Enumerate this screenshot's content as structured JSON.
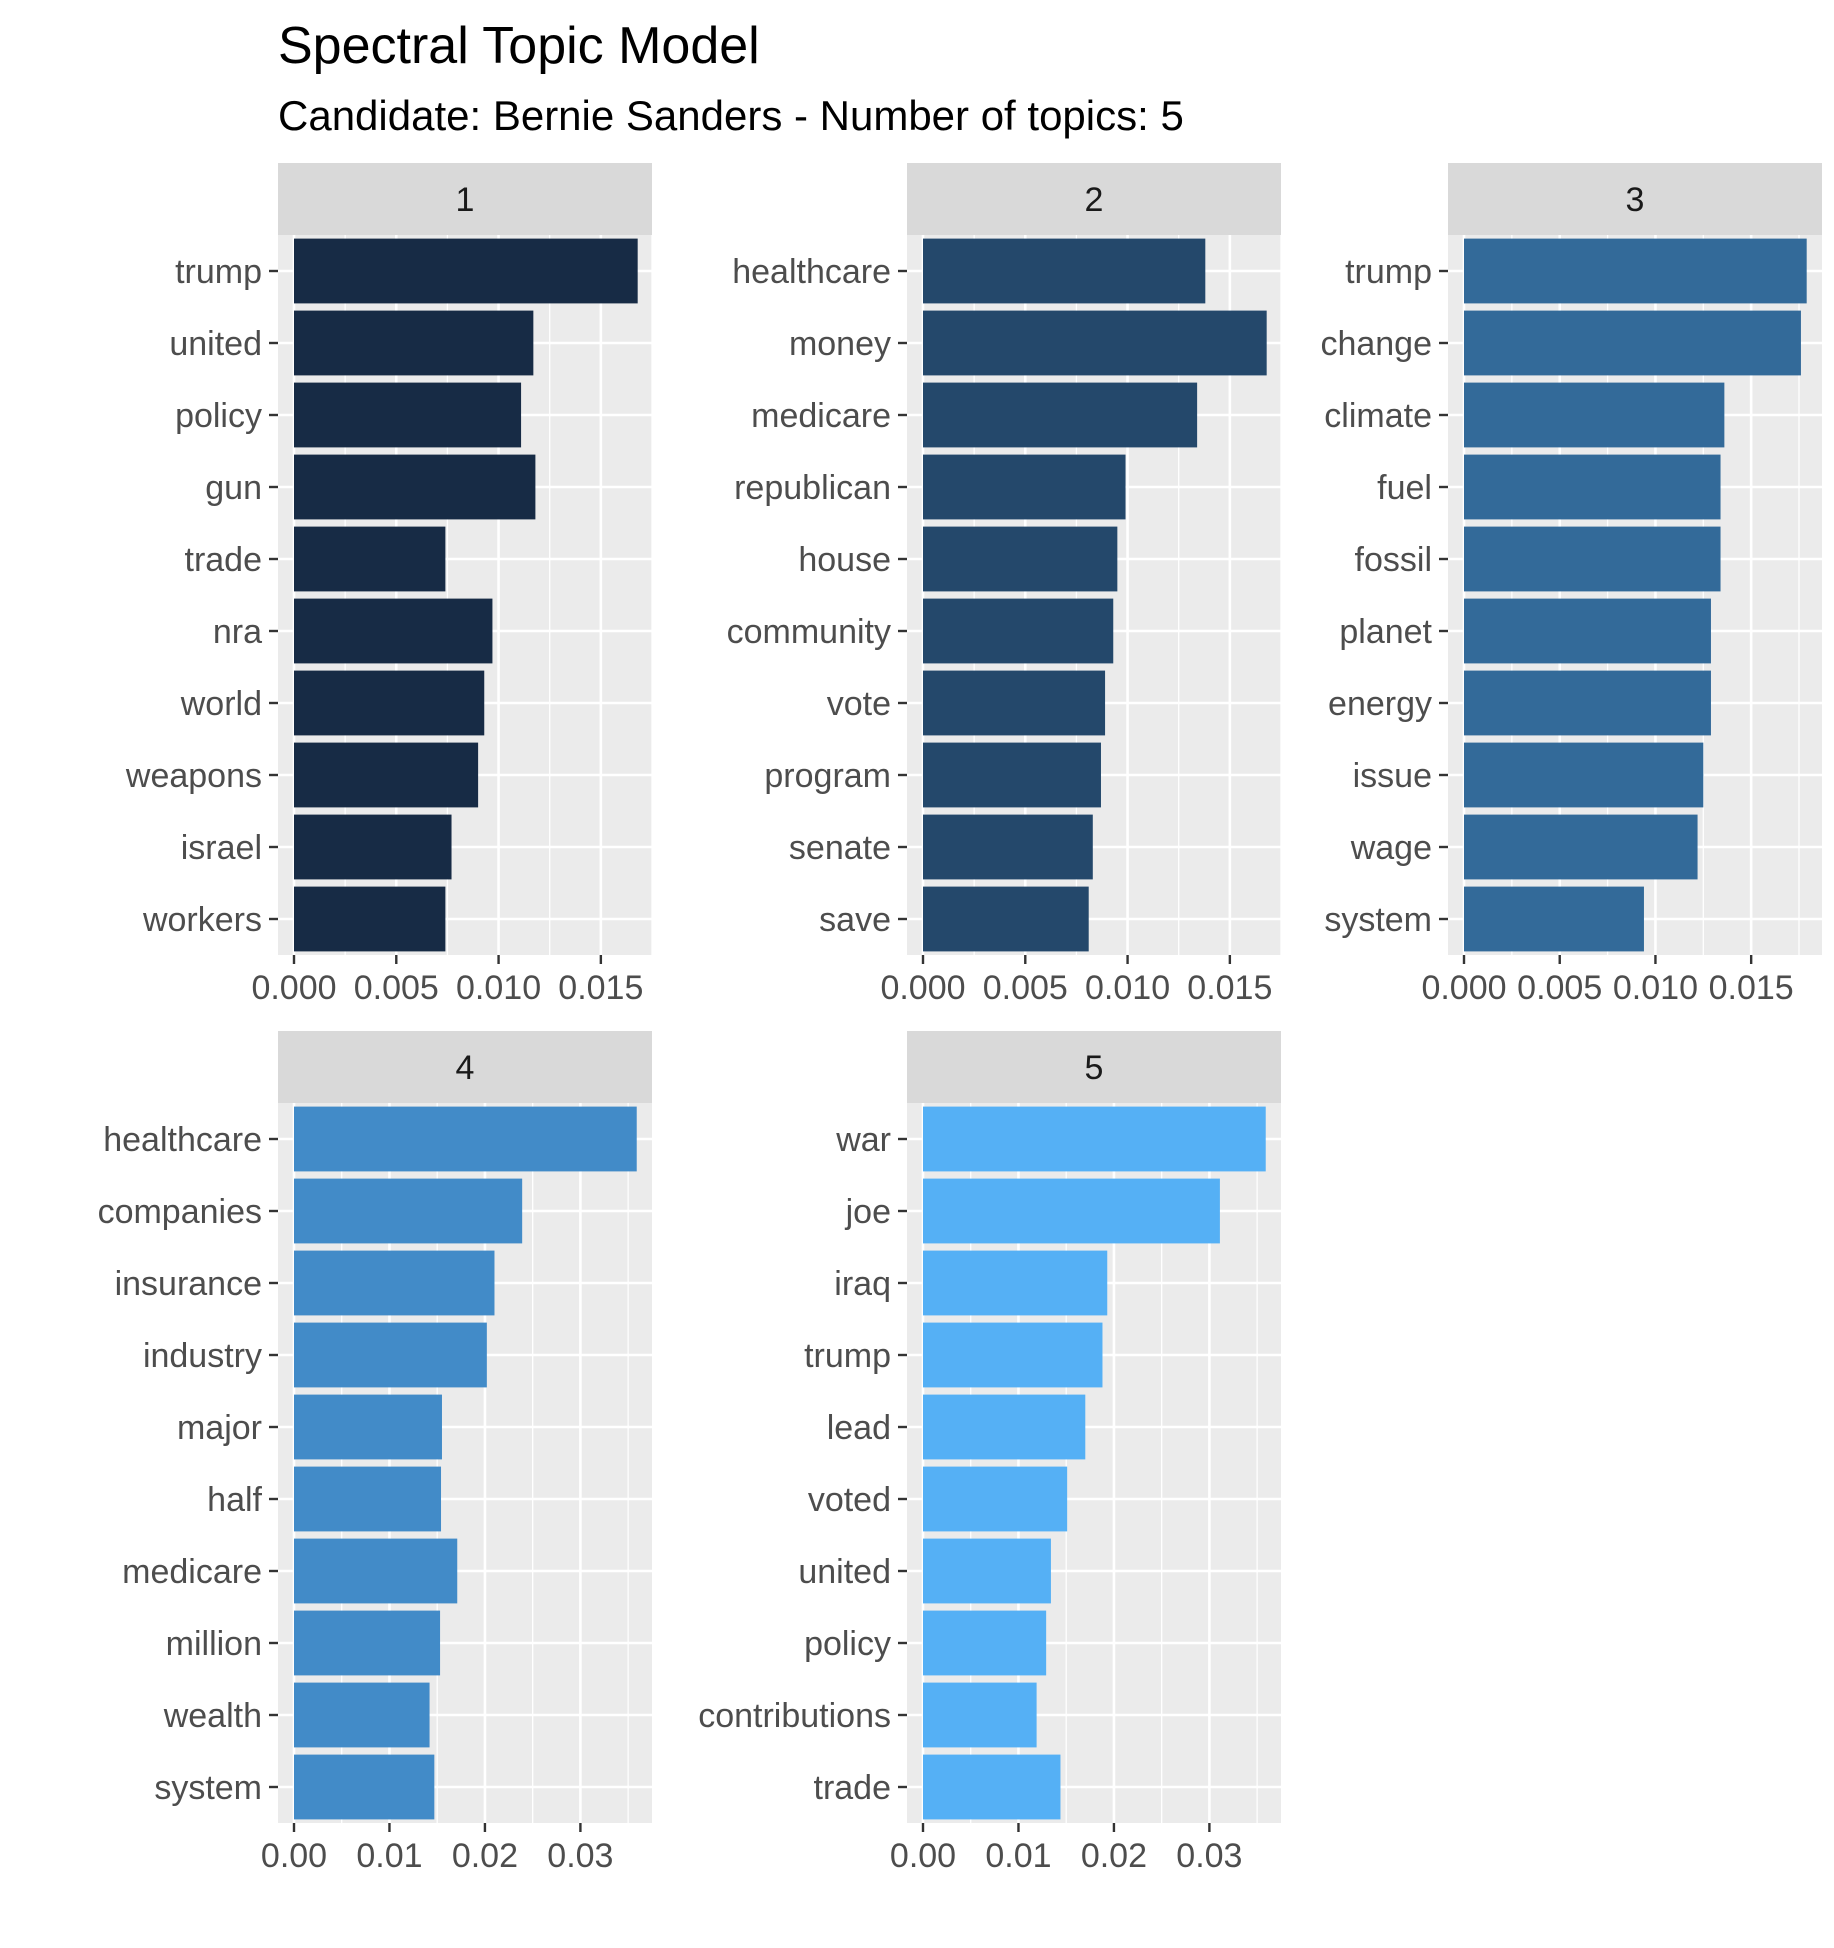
{
  "chart_data": {
    "type": "bar",
    "orientation": "horizontal",
    "title": "Spectral Topic Model",
    "subtitle": "Candidate: Bernie Sanders - Number of topics: 5",
    "xlabel": "",
    "ylabel": "",
    "grid": true,
    "legend": "none",
    "facets": [
      {
        "label": "1",
        "color": "#172b45",
        "xlim": [
          0,
          0.0175
        ],
        "ticks": [
          0,
          0.005,
          0.01,
          0.015
        ],
        "tick_labels": [
          "0.000",
          "0.005",
          "0.010",
          "0.015"
        ],
        "categories": [
          "trump",
          "united",
          "policy",
          "gun",
          "trade",
          "nra",
          "world",
          "weapons",
          "israel",
          "workers"
        ],
        "values": [
          0.0168,
          0.0117,
          0.0111,
          0.0118,
          0.0074,
          0.0097,
          0.0093,
          0.009,
          0.0077,
          0.0074
        ]
      },
      {
        "label": "2",
        "color": "#24486b",
        "xlim": [
          0,
          0.0175
        ],
        "ticks": [
          0,
          0.005,
          0.01,
          0.015
        ],
        "tick_labels": [
          "0.000",
          "0.005",
          "0.010",
          "0.015"
        ],
        "categories": [
          "healthcare",
          "money",
          "medicare",
          "republican",
          "house",
          "community",
          "vote",
          "program",
          "senate",
          "save"
        ],
        "values": [
          0.0138,
          0.0168,
          0.0134,
          0.0099,
          0.0095,
          0.0093,
          0.0089,
          0.0087,
          0.0083,
          0.0081
        ]
      },
      {
        "label": "3",
        "color": "#336a99",
        "xlim": [
          0,
          0.0187
        ],
        "ticks": [
          0,
          0.005,
          0.01,
          0.015
        ],
        "tick_labels": [
          "0.000",
          "0.005",
          "0.010",
          "0.015"
        ],
        "categories": [
          "trump",
          "change",
          "climate",
          "fuel",
          "fossil",
          "planet",
          "energy",
          "issue",
          "wage",
          "system"
        ],
        "values": [
          0.0179,
          0.0176,
          0.0136,
          0.0134,
          0.0134,
          0.0129,
          0.0129,
          0.0125,
          0.0122,
          0.0094
        ]
      },
      {
        "label": "4",
        "color": "#428bc8",
        "xlim": [
          0,
          0.0375
        ],
        "ticks": [
          0,
          0.01,
          0.02,
          0.03
        ],
        "tick_labels": [
          "0.00",
          "0.01",
          "0.02",
          "0.03"
        ],
        "categories": [
          "healthcare",
          "companies",
          "insurance",
          "industry",
          "major",
          "half",
          "medicare",
          "million",
          "wealth",
          "system"
        ],
        "values": [
          0.0359,
          0.0239,
          0.021,
          0.0202,
          0.0155,
          0.0154,
          0.0171,
          0.0153,
          0.0142,
          0.0147
        ]
      },
      {
        "label": "5",
        "color": "#55b0f5",
        "xlim": [
          0,
          0.0375
        ],
        "ticks": [
          0,
          0.01,
          0.02,
          0.03
        ],
        "tick_labels": [
          "0.00",
          "0.01",
          "0.02",
          "0.03"
        ],
        "categories": [
          "war",
          "joe",
          "iraq",
          "trump",
          "lead",
          "voted",
          "united",
          "policy",
          "contributions",
          "trade"
        ],
        "values": [
          0.0359,
          0.0311,
          0.0193,
          0.0188,
          0.017,
          0.0151,
          0.0134,
          0.0129,
          0.0119,
          0.0144
        ]
      }
    ]
  }
}
